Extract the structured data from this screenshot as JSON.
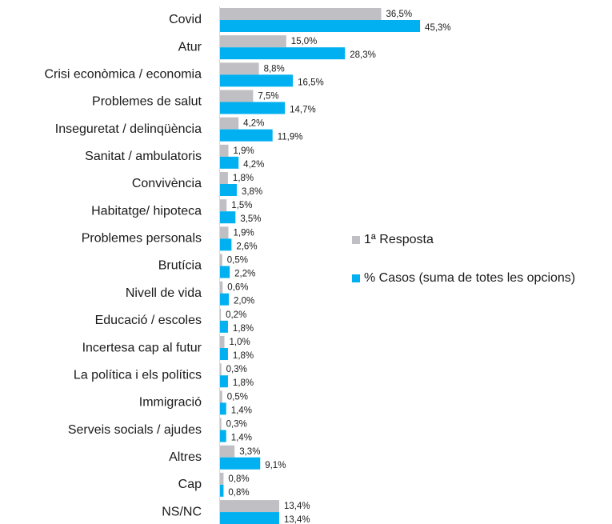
{
  "chart_data": {
    "type": "bar",
    "orientation": "horizontal",
    "categories": [
      "Covid",
      "Atur",
      "Crisi econòmica / economia",
      "Problemes de salut",
      "Inseguretat / delinqüència",
      "Sanitat / ambulatoris",
      "Convivència",
      "Habitatge/ hipoteca",
      "Problemes personals",
      "Brutícia",
      "Nivell de vida",
      "Educació / escoles",
      "Incertesa cap al futur",
      "La política i els polítics",
      "Immigració",
      "Serveis socials / ajudes",
      "Altres",
      "Cap",
      "NS/NC"
    ],
    "series": [
      {
        "name": "1ª Resposta",
        "color": "#c0bfc4",
        "values": [
          36.5,
          15.0,
          8.8,
          7.5,
          4.2,
          1.9,
          1.8,
          1.5,
          1.9,
          0.5,
          0.6,
          0.2,
          1.0,
          0.3,
          0.5,
          0.3,
          3.3,
          0.8,
          13.4
        ],
        "value_labels": [
          "36,5%",
          "15,0%",
          "8,8%",
          "7,5%",
          "4,2%",
          "1,9%",
          "1,8%",
          "1,5%",
          "1,9%",
          "0,5%",
          "0,6%",
          "0,2%",
          "1,0%",
          "0,3%",
          "0,5%",
          "0,3%",
          "3,3%",
          "0,8%",
          "13,4%"
        ]
      },
      {
        "name": "% Casos (suma de totes les opcions)",
        "color": "#00b0f0",
        "values": [
          45.3,
          28.3,
          16.5,
          14.7,
          11.9,
          4.2,
          3.8,
          3.5,
          2.6,
          2.2,
          2.0,
          1.8,
          1.8,
          1.8,
          1.4,
          1.4,
          9.1,
          0.8,
          13.4
        ],
        "value_labels": [
          "45,3%",
          "28,3%",
          "16,5%",
          "14,7%",
          "11,9%",
          "4,2%",
          "3,8%",
          "3,5%",
          "2,6%",
          "2,2%",
          "2,0%",
          "1,8%",
          "1,8%",
          "1,8%",
          "1,4%",
          "1,4%",
          "9,1%",
          "0,8%",
          "13,4%"
        ]
      }
    ],
    "legend": "right"
  }
}
